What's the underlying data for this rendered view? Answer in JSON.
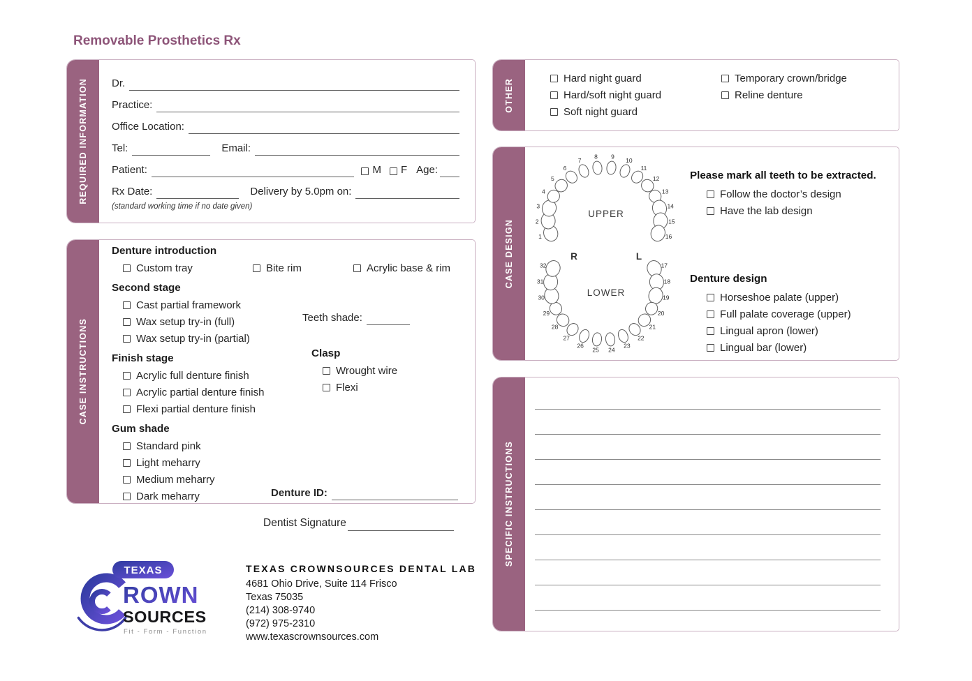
{
  "page": {
    "title": "Removable Prosthetics Rx"
  },
  "colors": {
    "accent": "#9a6380",
    "title": "#8d5478",
    "panel_border": "#c9aec0",
    "logo_blue": "#2f3ba0",
    "logo_violet": "#6a50d8"
  },
  "required_information": {
    "label": "REQUIRED INFORMATION",
    "dr_label": "Dr.",
    "practice_label": "Practice:",
    "office_location_label": "Office Location:",
    "tel_label": "Tel:",
    "email_label": "Email:",
    "patient_label": "Patient:",
    "male_label": "M",
    "female_label": "F",
    "age_label": "Age:",
    "rx_date_label": "Rx Date:",
    "delivery_label": "Delivery by 5.0pm on:",
    "note": "(standard working time if no date given)"
  },
  "case_instructions": {
    "label": "CASE INSTRUCTIONS",
    "denture_introduction": {
      "heading": "Denture introduction",
      "options": [
        "Custom tray",
        "Bite rim",
        "Acrylic base & rim"
      ]
    },
    "second_stage": {
      "heading": "Second stage",
      "options": [
        "Cast partial framework",
        "Wax setup try-in (full)",
        "Wax setup try-in (partial)"
      ]
    },
    "teeth_shade_label": "Teeth shade:",
    "finish_stage": {
      "heading": "Finish stage",
      "options": [
        "Acrylic full denture finish",
        "Acrylic partial denture finish",
        "Flexi partial denture finish"
      ]
    },
    "clasp": {
      "heading": "Clasp",
      "options": [
        "Wrought wire",
        "Flexi"
      ]
    },
    "gum_shade": {
      "heading": "Gum shade",
      "options": [
        "Standard pink",
        "Light meharry",
        "Medium meharry",
        "Dark meharry"
      ]
    },
    "denture_id_label": "Denture ID:"
  },
  "other": {
    "label": "OTHER",
    "column1": [
      "Hard night guard",
      "Hard/soft night guard",
      "Soft night guard"
    ],
    "column2": [
      "Temporary crown/bridge",
      "Reline denture"
    ]
  },
  "case_design": {
    "label": "CASE DESIGN",
    "extract_heading": "Please mark all teeth to be extracted.",
    "extract_options": [
      "Follow the doctor’s design",
      "Have the lab design"
    ],
    "denture_design_heading": "Denture design",
    "denture_design_options": [
      "Horseshoe palate (upper)",
      "Full palate coverage (upper)",
      "Lingual apron (lower)",
      "Lingual bar (lower)"
    ],
    "tooth_chart": {
      "upper_label": "UPPER",
      "lower_label": "LOWER",
      "right_label": "R",
      "left_label": "L",
      "upper_teeth": [
        1,
        2,
        3,
        4,
        5,
        6,
        7,
        8,
        9,
        10,
        11,
        12,
        13,
        14,
        15,
        16
      ],
      "lower_teeth": [
        17,
        18,
        19,
        20,
        21,
        22,
        23,
        24,
        25,
        26,
        27,
        28,
        29,
        30,
        31,
        32
      ]
    }
  },
  "specific_instructions": {
    "label": "SPECIFIC INSTRUCTIONS",
    "line_count": 9
  },
  "signature": {
    "label": "Dentist Signature"
  },
  "footer": {
    "logo": {
      "texas": "TEXAS",
      "rown": "ROWN",
      "sources": "SOURCES",
      "tagline": "Fit - Form - Function"
    },
    "lab_name": "TEXAS CROWNSOURCES DENTAL LAB",
    "address_line1": "4681 Ohio Drive, Suite 114 Frisco",
    "address_line2": "Texas 75035",
    "phone1": "(214) 308-9740",
    "phone2": "(972) 975-2310",
    "website": "www.texascrownsources.com"
  }
}
